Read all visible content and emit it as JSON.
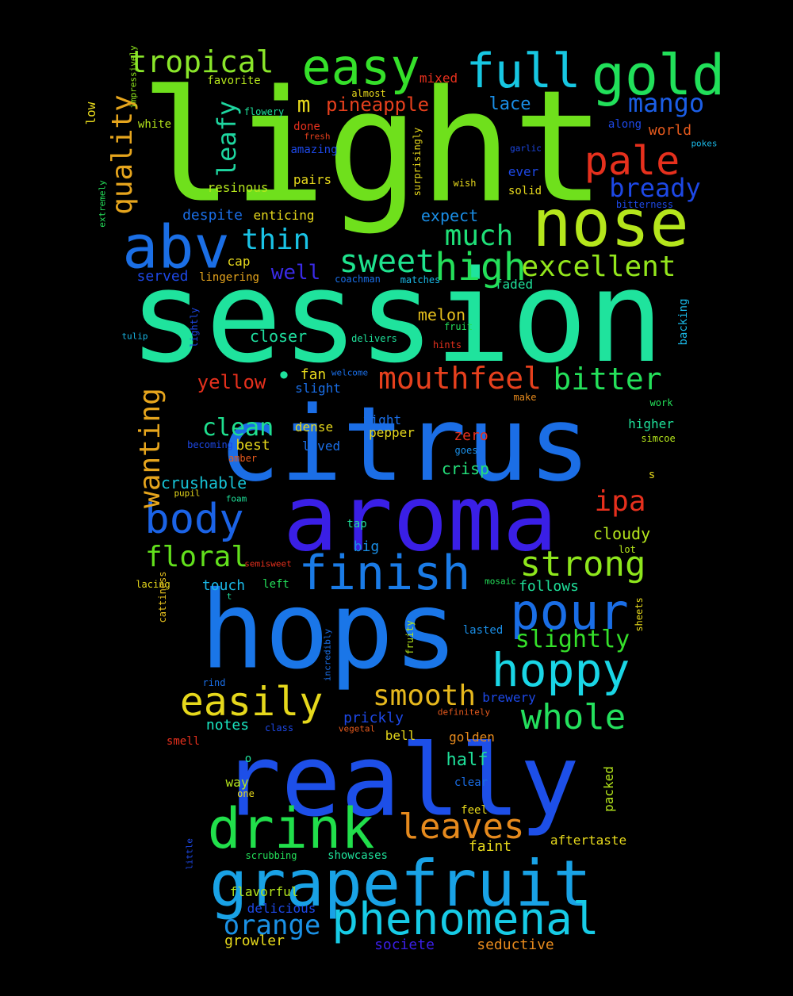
{
  "background": "#000000",
  "words": [
    {
      "text": "light",
      "color": "#6fe01c"
    },
    {
      "text": "session",
      "color": "#1fe39d"
    },
    {
      "text": "citrus",
      "color": "#1b6ee6"
    },
    {
      "text": "aroma",
      "color": "#3a1fe6"
    },
    {
      "text": "hops",
      "color": "#1a76e8"
    },
    {
      "text": "really",
      "color": "#1d4fe8"
    },
    {
      "text": "grapefruit",
      "color": "#19a2e6"
    },
    {
      "text": "nose",
      "color": "#b5e61c"
    },
    {
      "text": "gold",
      "color": "#21e05a"
    },
    {
      "text": "easy",
      "color": "#35e02a"
    },
    {
      "text": "full",
      "color": "#17c7e2"
    },
    {
      "text": "abv",
      "color": "#1b6fe6"
    },
    {
      "text": "pale",
      "color": "#e6301d"
    },
    {
      "text": "drink",
      "color": "#21df4b"
    },
    {
      "text": "phenomenal",
      "color": "#17cbe6"
    },
    {
      "text": "pour",
      "color": "#1a6ee6"
    },
    {
      "text": "hoppy",
      "color": "#1ad6e6"
    },
    {
      "text": "finish",
      "color": "#1a7be6"
    },
    {
      "text": "body",
      "color": "#1b63e6"
    },
    {
      "text": "easily",
      "color": "#e6d81c"
    },
    {
      "text": "whole",
      "color": "#24e05d"
    },
    {
      "text": "leaves",
      "color": "#e68a1d"
    },
    {
      "text": "strong",
      "color": "#8ee61c"
    },
    {
      "text": "mouthfeel",
      "color": "#e6401d"
    },
    {
      "text": "bitter",
      "color": "#24e05a"
    },
    {
      "text": "tropical",
      "color": "#8ae62a"
    },
    {
      "text": "sweet",
      "color": "#1fe38e"
    },
    {
      "text": "thin",
      "color": "#1ac3e6"
    },
    {
      "text": "excellent",
      "color": "#93e61c"
    },
    {
      "text": "much",
      "color": "#1fe078"
    },
    {
      "text": "mango",
      "color": "#1b5ee6"
    },
    {
      "text": "bready",
      "color": "#1d48e6"
    },
    {
      "text": "orange",
      "color": "#1a91e6"
    },
    {
      "text": "smooth",
      "color": "#e6b81d"
    },
    {
      "text": "floral",
      "color": "#62e01c"
    },
    {
      "text": "ipa",
      "color": "#e6301d"
    },
    {
      "text": "clean",
      "color": "#1fe08f"
    },
    {
      "text": "slightly",
      "color": "#35e02a"
    },
    {
      "text": "wanting",
      "color": "#e6a51d"
    },
    {
      "text": "quality",
      "color": "#e6a51d"
    },
    {
      "text": "leafy",
      "color": "#1ed6a0"
    },
    {
      "text": "pineapple",
      "color": "#e6401d"
    },
    {
      "text": "well",
      "color": "#3a2ae6"
    },
    {
      "text": "yellow",
      "color": "#e6301d"
    },
    {
      "text": "melon",
      "color": "#e6c01d"
    },
    {
      "text": "lace",
      "color": "#1a8ee6"
    },
    {
      "text": "crushable",
      "color": "#17c3d6"
    },
    {
      "text": "half",
      "color": "#1fe09a"
    },
    {
      "text": "m",
      "color": "#e6d81c"
    },
    {
      "text": "closer",
      "color": "#1fe0a0"
    },
    {
      "text": "despite",
      "color": "#1a6ee6"
    },
    {
      "text": "enticing",
      "color": "#e6d81c"
    },
    {
      "text": "expect",
      "color": "#1a8ee6"
    },
    {
      "text": "notes",
      "color": "#1ae6c2"
    },
    {
      "text": "growler",
      "color": "#e6d81c"
    },
    {
      "text": "societe",
      "color": "#3a1fe6"
    },
    {
      "text": "seductive",
      "color": "#e68a1d"
    },
    {
      "text": "delicious",
      "color": "#1d48e6"
    },
    {
      "text": "crisp",
      "color": "#24e07a"
    },
    {
      "text": "golden",
      "color": "#e68a1d"
    },
    {
      "text": "dense",
      "color": "#e6d81c"
    },
    {
      "text": "best",
      "color": "#e6d81c"
    },
    {
      "text": "zero",
      "color": "#e6301d"
    },
    {
      "text": "pepper",
      "color": "#e6d81c"
    },
    {
      "text": "brewery",
      "color": "#1d48e6"
    },
    {
      "text": "prickly",
      "color": "#1d48e6"
    },
    {
      "text": "bell",
      "color": "#e6d81c"
    },
    {
      "text": "cloudy",
      "color": "#b5e61c"
    },
    {
      "text": "follows",
      "color": "#1fe09a"
    },
    {
      "text": "touch",
      "color": "#1ab8e6"
    },
    {
      "text": "big",
      "color": "#1a8ee6"
    },
    {
      "text": "fan",
      "color": "#e6d81c"
    },
    {
      "text": "slight",
      "color": "#1a6ee6"
    },
    {
      "text": "served",
      "color": "#1d48e6"
    },
    {
      "text": "cap",
      "color": "#e6d81c"
    },
    {
      "text": "lingering",
      "color": "#e6a51d"
    },
    {
      "text": "faded",
      "color": "#1fe09a"
    },
    {
      "text": "resinous",
      "color": "#b5e61c"
    },
    {
      "text": "pairs",
      "color": "#e6d81c"
    },
    {
      "text": "world",
      "color": "#e65a1d"
    },
    {
      "text": "along",
      "color": "#1d48e6"
    },
    {
      "text": "ever",
      "color": "#1d48e6"
    },
    {
      "text": "solid",
      "color": "#e6d81c"
    },
    {
      "text": "white",
      "color": "#b5e61c"
    },
    {
      "text": "done",
      "color": "#e6301d"
    },
    {
      "text": "favorite",
      "color": "#b5e61c"
    },
    {
      "text": "mixed",
      "color": "#e6301d"
    },
    {
      "text": "almost",
      "color": "#e6d81c"
    },
    {
      "text": "flowery",
      "color": "#1fe09a"
    },
    {
      "text": "fresh",
      "color": "#e6401d"
    },
    {
      "text": "amazing",
      "color": "#1d48e6"
    },
    {
      "text": "wish",
      "color": "#e6d81c"
    },
    {
      "text": "garlic",
      "color": "#1d48e6"
    },
    {
      "text": "bitterness",
      "color": "#1d48e6"
    },
    {
      "text": "pokes",
      "color": "#1ab8e6"
    },
    {
      "text": "coachman",
      "color": "#1a6ee6"
    },
    {
      "text": "matches",
      "color": "#1ab8e6"
    },
    {
      "text": "fruit",
      "color": "#24e05a"
    },
    {
      "text": "hints",
      "color": "#e6301d"
    },
    {
      "text": "delivers",
      "color": "#1fe09a"
    },
    {
      "text": "welcome",
      "color": "#1a6ee6"
    },
    {
      "text": "tulip",
      "color": "#1ab8e6"
    },
    {
      "text": "make",
      "color": "#e68a1d"
    },
    {
      "text": "work",
      "color": "#24e05a"
    },
    {
      "text": "higher",
      "color": "#1fe09a"
    },
    {
      "text": "simcoe",
      "color": "#b5e61c"
    },
    {
      "text": "tight",
      "color": "#1a6ee6"
    },
    {
      "text": "goes",
      "color": "#1a8ee6"
    },
    {
      "text": "becoming",
      "color": "#1d48e6"
    },
    {
      "text": "lived",
      "color": "#1a6ee6"
    },
    {
      "text": "amber",
      "color": "#e65a1d"
    },
    {
      "text": "s",
      "color": "#e6d81c"
    },
    {
      "text": "foam",
      "color": "#1fe09a"
    },
    {
      "text": "pupil",
      "color": "#e6d81c"
    },
    {
      "text": "tap",
      "color": "#1fe09a"
    },
    {
      "text": "lot",
      "color": "#b5e61c"
    },
    {
      "text": "semisweet",
      "color": "#e6301d"
    },
    {
      "text": "mosaic",
      "color": "#24e05a"
    },
    {
      "text": "left",
      "color": "#24e05a"
    },
    {
      "text": "lacing",
      "color": "#e6d81c"
    },
    {
      "text": "t",
      "color": "#1fe09a"
    },
    {
      "text": "lasted",
      "color": "#1a8ee6"
    },
    {
      "text": "rind",
      "color": "#1a6ee6"
    },
    {
      "text": "definitely",
      "color": "#e65a1d"
    },
    {
      "text": "class",
      "color": "#1d48e6"
    },
    {
      "text": "vegetal",
      "color": "#e65a1d"
    },
    {
      "text": "smell",
      "color": "#e6301d"
    },
    {
      "text": "o",
      "color": "#1fe09a"
    },
    {
      "text": "way",
      "color": "#b5e61c"
    },
    {
      "text": "one",
      "color": "#e6d81c"
    },
    {
      "text": "clear",
      "color": "#1a6ee6"
    },
    {
      "text": "feel",
      "color": "#e6d81c"
    },
    {
      "text": "aftertaste",
      "color": "#e6d81c"
    },
    {
      "text": "faint",
      "color": "#e6d81c"
    },
    {
      "text": "scrubbing",
      "color": "#24e05a"
    },
    {
      "text": "showcases",
      "color": "#1fe09a"
    },
    {
      "text": "flavorful",
      "color": "#b5e61c"
    },
    {
      "text": "low",
      "color": "#e6d81c"
    },
    {
      "text": "impressively",
      "color": "#8ee61c"
    },
    {
      "text": "extremely",
      "color": "#24e05a"
    },
    {
      "text": "lightly",
      "color": "#1d48e6"
    },
    {
      "text": "surprisingly",
      "color": "#e6d81c"
    },
    {
      "text": "backing",
      "color": "#1ab8e6"
    },
    {
      "text": "cattiness",
      "color": "#e6c01d"
    },
    {
      "text": "fruity",
      "color": "#b5e61c"
    },
    {
      "text": "incredibly",
      "color": "#1a6ee6"
    },
    {
      "text": "sheets",
      "color": "#e6d81c"
    },
    {
      "text": "packed",
      "color": "#b5e61c"
    },
    {
      "text": "little",
      "color": "#1d48e6"
    },
    {
      "text": "high",
      "color": "#24e05a"
    },
    {
      "text": "•",
      "color": "#1fe39d"
    },
    {
      "text": "•",
      "color": "#1b6ee6"
    }
  ]
}
